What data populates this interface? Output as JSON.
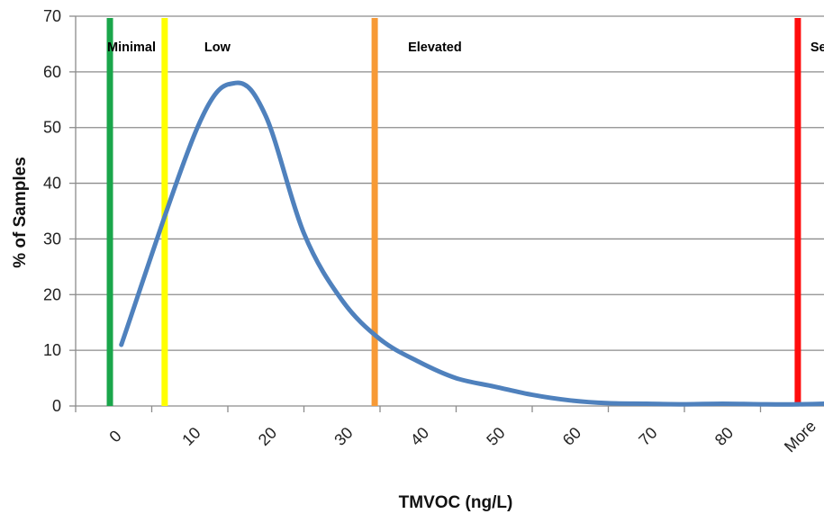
{
  "chart_data": {
    "type": "line",
    "title": "",
    "xlabel": "TMVOC (ng/L)",
    "ylabel": "% of Samples",
    "ylim": [
      0,
      70
    ],
    "yticks": [
      "0",
      "10",
      "20",
      "30",
      "40",
      "50",
      "60",
      "70"
    ],
    "categories": [
      "0",
      "10",
      "20",
      "30",
      "40",
      "50",
      "60",
      "70",
      "80",
      "More"
    ],
    "grid": "horizontal",
    "series": [
      {
        "color": "#4f81bd",
        "points": [
          {
            "x": 0.1,
            "y": 11
          },
          {
            "x": 1.1,
            "y": 50
          },
          {
            "x": 1.6,
            "y": 58
          },
          {
            "x": 2.0,
            "y": 52
          },
          {
            "x": 2.5,
            "y": 31
          },
          {
            "x": 3.0,
            "y": 19
          },
          {
            "x": 3.5,
            "y": 12
          },
          {
            "x": 4.0,
            "y": 8
          },
          {
            "x": 4.5,
            "y": 5
          },
          {
            "x": 5.0,
            "y": 3.5
          },
          {
            "x": 5.5,
            "y": 2
          },
          {
            "x": 6.0,
            "y": 1
          },
          {
            "x": 6.5,
            "y": 0.5
          },
          {
            "x": 7.0,
            "y": 0.4
          },
          {
            "x": 7.5,
            "y": 0.3
          },
          {
            "x": 8.0,
            "y": 0.4
          },
          {
            "x": 8.5,
            "y": 0.3
          },
          {
            "x": 9.0,
            "y": 0.3
          },
          {
            "x": 9.5,
            "y": 0.5
          },
          {
            "x": 9.95,
            "y": 0.9
          }
        ]
      }
    ],
    "thresholds": [
      {
        "label": "Minimal",
        "x": -0.05,
        "color": "#1aa64b"
      },
      {
        "label": "Low",
        "x": 0.67,
        "color": "#ffff00"
      },
      {
        "label": "Elevated",
        "x": 3.43,
        "color": "#f79a36"
      },
      {
        "label": "Severe",
        "x": 8.99,
        "color": "#ff0d0d"
      }
    ]
  }
}
